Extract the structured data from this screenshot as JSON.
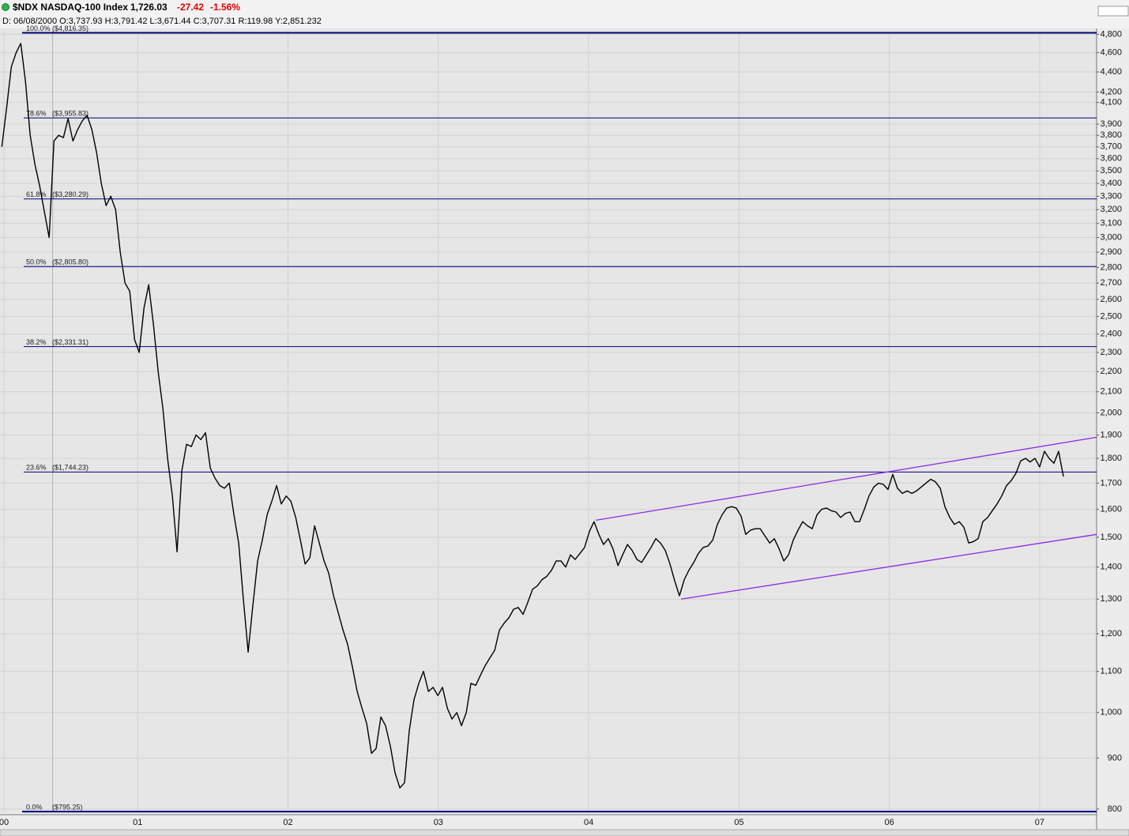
{
  "chart_data": {
    "type": "line",
    "header": {
      "symbol": "$NDX NASDAQ-100 Index",
      "last": "1,726.03",
      "change": "-27.42",
      "change_pct": "-1.56%",
      "details": "D: 06/08/2000 O:3,737.93 H:3,791.42 L:3,671.44 C:3,707.31 R:119.98 Y:2,851.232"
    },
    "log_y": true,
    "grid": true,
    "xlim": [
      2000.084,
      2007.379
    ],
    "xticks": [
      {
        "value": 2000.11,
        "label": "00"
      },
      {
        "value": 2001,
        "label": "01"
      },
      {
        "value": 2002,
        "label": "02"
      },
      {
        "value": 2003,
        "label": "03"
      },
      {
        "value": 2004,
        "label": "04"
      },
      {
        "value": 2005,
        "label": "05"
      },
      {
        "value": 2006,
        "label": "06"
      },
      {
        "value": 2007,
        "label": "07"
      }
    ],
    "ylim": [
      794,
      4830
    ],
    "yticks": [
      800,
      900,
      {
        "value": 1000,
        "label": "1,000"
      },
      {
        "value": 1100,
        "label": "1,100"
      },
      {
        "value": 1200,
        "label": "1,200"
      },
      {
        "value": 1300,
        "label": "1,300"
      },
      {
        "value": 1400,
        "label": "1,400"
      },
      {
        "value": 1500,
        "label": "1,500"
      },
      {
        "value": 1600,
        "label": "1,600"
      },
      {
        "value": 1700,
        "label": "1,700"
      },
      {
        "value": 1800,
        "label": "1,800"
      },
      {
        "value": 1900,
        "label": "1,900"
      },
      {
        "value": 2000,
        "label": "2,000"
      },
      {
        "value": 2100,
        "label": "2,100"
      },
      {
        "value": 2200,
        "label": "2,200"
      },
      {
        "value": 2300,
        "label": "2,300"
      },
      {
        "value": 2400,
        "label": "2,400"
      },
      {
        "value": 2500,
        "label": "2,500"
      },
      {
        "value": 2600,
        "label": "2,600"
      },
      {
        "value": 2700,
        "label": "2,700"
      },
      {
        "value": 2800,
        "label": "2,800"
      },
      {
        "value": 2900,
        "label": "2,900"
      },
      {
        "value": 3000,
        "label": "3,000"
      },
      {
        "value": 3100,
        "label": "3,100"
      },
      {
        "value": 3200,
        "label": "3,200"
      },
      {
        "value": 3300,
        "label": "3,300"
      },
      {
        "value": 3400,
        "label": "3,400"
      },
      {
        "value": 3500,
        "label": "3,500"
      },
      {
        "value": 3600,
        "label": "3,600"
      },
      {
        "value": 3700,
        "label": "3,700"
      },
      {
        "value": 3800,
        "label": "3,800"
      },
      {
        "value": 3900,
        "label": "3,900"
      },
      {
        "value": 4100,
        "label": "4,100"
      },
      {
        "value": 4200,
        "label": "4,200"
      },
      {
        "value": 4400,
        "label": "4,400"
      },
      {
        "value": 4600,
        "label": "4,600"
      },
      {
        "value": 4800,
        "label": "4,800"
      }
    ],
    "cursor_x": 2000.434,
    "x": [
      2000.096,
      2000.128,
      2000.159,
      2000.191,
      2000.222,
      2000.254,
      2000.285,
      2000.317,
      2000.348,
      2000.38,
      2000.411,
      2000.443,
      2000.474,
      2000.506,
      2000.537,
      2000.569,
      2000.6,
      2000.632,
      2000.663,
      2000.695,
      2000.727,
      2000.758,
      2000.79,
      2000.821,
      2000.853,
      2000.884,
      2000.916,
      2000.947,
      2000.979,
      2001.01,
      2001.042,
      2001.073,
      2001.105,
      2001.136,
      2001.168,
      2001.199,
      2001.231,
      2001.262,
      2001.294,
      2001.325,
      2001.357,
      2001.388,
      2001.42,
      2001.451,
      2001.483,
      2001.514,
      2001.546,
      2001.577,
      2001.609,
      2001.64,
      2001.672,
      2001.703,
      2001.735,
      2001.766,
      2001.798,
      2001.829,
      2001.861,
      2001.892,
      2001.924,
      2001.955,
      2001.988,
      2002.019,
      2002.051,
      2002.082,
      2002.114,
      2002.145,
      2002.177,
      2002.208,
      2002.24,
      2002.271,
      2002.303,
      2002.334,
      2002.366,
      2002.397,
      2002.429,
      2002.46,
      2002.492,
      2002.523,
      2002.555,
      2002.586,
      2002.618,
      2002.649,
      2002.681,
      2002.712,
      2002.744,
      2002.775,
      2002.807,
      2002.838,
      2002.87,
      2002.901,
      2002.934,
      2002.965,
      2002.997,
      2003.028,
      2003.06,
      2003.091,
      2003.123,
      2003.154,
      2003.186,
      2003.217,
      2003.249,
      2003.28,
      2003.312,
      2003.343,
      2003.375,
      2003.406,
      2003.438,
      2003.469,
      2003.501,
      2003.532,
      2003.564,
      2003.595,
      2003.627,
      2003.658,
      2003.69,
      2003.721,
      2003.753,
      2003.784,
      2003.816,
      2003.847,
      2003.879,
      2003.91,
      2003.942,
      2003.973,
      2004.005,
      2004.036,
      2004.068,
      2004.099,
      2004.131,
      2004.162,
      2004.195,
      2004.226,
      2004.258,
      2004.289,
      2004.321,
      2004.352,
      2004.384,
      2004.415,
      2004.447,
      2004.478,
      2004.51,
      2004.541,
      2004.573,
      2004.604,
      2004.636,
      2004.667,
      2004.699,
      2004.73,
      2004.762,
      2004.793,
      2004.825,
      2004.856,
      2004.888,
      2004.919,
      2004.951,
      2004.982,
      2005.014,
      2005.045,
      2005.077,
      2005.108,
      2005.141,
      2005.172,
      2005.204,
      2005.235,
      2005.267,
      2005.298,
      2005.33,
      2005.361,
      2005.393,
      2005.424,
      2005.456,
      2005.487,
      2005.519,
      2005.55,
      2005.582,
      2005.613,
      2005.645,
      2005.676,
      2005.708,
      2005.739,
      2005.771,
      2005.802,
      2005.834,
      2005.865,
      2005.897,
      2005.928,
      2005.96,
      2005.991,
      2006.023,
      2006.054,
      2006.087,
      2006.118,
      2006.15,
      2006.181,
      2006.213,
      2006.244,
      2006.276,
      2006.307,
      2006.339,
      2006.37,
      2006.402,
      2006.433,
      2006.465,
      2006.496,
      2006.528,
      2006.559,
      2006.591,
      2006.622,
      2006.654,
      2006.685,
      2006.717,
      2006.748,
      2006.78,
      2006.811,
      2006.843,
      2006.874,
      2006.906,
      2006.937,
      2006.969,
      2007.0,
      2007.032,
      2007.063,
      2007.095,
      2007.126,
      2007.158
    ],
    "series": [
      {
        "color": "#000000",
        "values": [
          3700,
          4050,
          4450,
          4600,
          4700,
          4300,
          3800,
          3550,
          3380,
          3180,
          3000,
          3750,
          3800,
          3780,
          3950,
          3750,
          3850,
          3930,
          3980,
          3850,
          3650,
          3400,
          3230,
          3300,
          3200,
          2900,
          2700,
          2650,
          2370,
          2300,
          2550,
          2690,
          2450,
          2200,
          2020,
          1800,
          1650,
          1450,
          1750,
          1860,
          1850,
          1900,
          1880,
          1910,
          1760,
          1720,
          1690,
          1680,
          1700,
          1580,
          1480,
          1300,
          1150,
          1280,
          1420,
          1490,
          1580,
          1630,
          1690,
          1620,
          1650,
          1630,
          1570,
          1490,
          1410,
          1430,
          1540,
          1480,
          1420,
          1380,
          1310,
          1260,
          1210,
          1170,
          1110,
          1050,
          1010,
          975,
          910,
          920,
          990,
          970,
          925,
          870,
          840,
          850,
          960,
          1030,
          1070,
          1100,
          1050,
          1060,
          1040,
          1060,
          1010,
          985,
          1000,
          970,
          1000,
          1070,
          1065,
          1090,
          1115,
          1135,
          1155,
          1210,
          1230,
          1245,
          1270,
          1275,
          1255,
          1290,
          1330,
          1340,
          1360,
          1370,
          1390,
          1420,
          1420,
          1400,
          1440,
          1425,
          1445,
          1465,
          1520,
          1555,
          1510,
          1475,
          1495,
          1460,
          1405,
          1440,
          1475,
          1455,
          1425,
          1415,
          1440,
          1465,
          1495,
          1480,
          1455,
          1410,
          1355,
          1310,
          1360,
          1390,
          1415,
          1445,
          1465,
          1470,
          1490,
          1545,
          1580,
          1605,
          1610,
          1605,
          1575,
          1510,
          1525,
          1530,
          1530,
          1505,
          1480,
          1495,
          1460,
          1420,
          1440,
          1490,
          1525,
          1555,
          1540,
          1530,
          1580,
          1600,
          1605,
          1595,
          1590,
          1570,
          1585,
          1590,
          1555,
          1555,
          1600,
          1650,
          1685,
          1700,
          1695,
          1675,
          1735,
          1680,
          1660,
          1670,
          1660,
          1670,
          1685,
          1700,
          1715,
          1705,
          1680,
          1610,
          1570,
          1545,
          1555,
          1535,
          1480,
          1485,
          1495,
          1555,
          1570,
          1595,
          1620,
          1650,
          1690,
          1710,
          1740,
          1790,
          1800,
          1785,
          1800,
          1765,
          1830,
          1800,
          1780,
          1830,
          1726
        ]
      }
    ],
    "fib_levels": [
      {
        "value": 4816.35,
        "percent": "100.0%",
        "label": "($4,816.35)"
      },
      {
        "value": 3955.83,
        "percent": "78.6%",
        "label": "($3,955.83)"
      },
      {
        "value": 3280.29,
        "percent": "61.8%",
        "label": "($3,280.29)"
      },
      {
        "value": 2805.8,
        "percent": "50.0%",
        "label": "($2,805.80)"
      },
      {
        "value": 2331.31,
        "percent": "38.2%",
        "label": "($2,331.31)"
      },
      {
        "value": 1744.23,
        "percent": "23.6%",
        "label": "($1,744.23)"
      },
      {
        "value": 795.25,
        "percent": "0.0%",
        "label": "($795.25)"
      }
    ],
    "fib_color": "#00007a",
    "trendlines": [
      {
        "color": "#8a2be2",
        "x": [
          2004.048,
          2007.379
        ],
        "values": [
          1560,
          1890
        ]
      },
      {
        "color": "#8a2be2",
        "x": [
          2004.615,
          2007.379
        ],
        "values": [
          1300,
          1510
        ]
      }
    ]
  }
}
